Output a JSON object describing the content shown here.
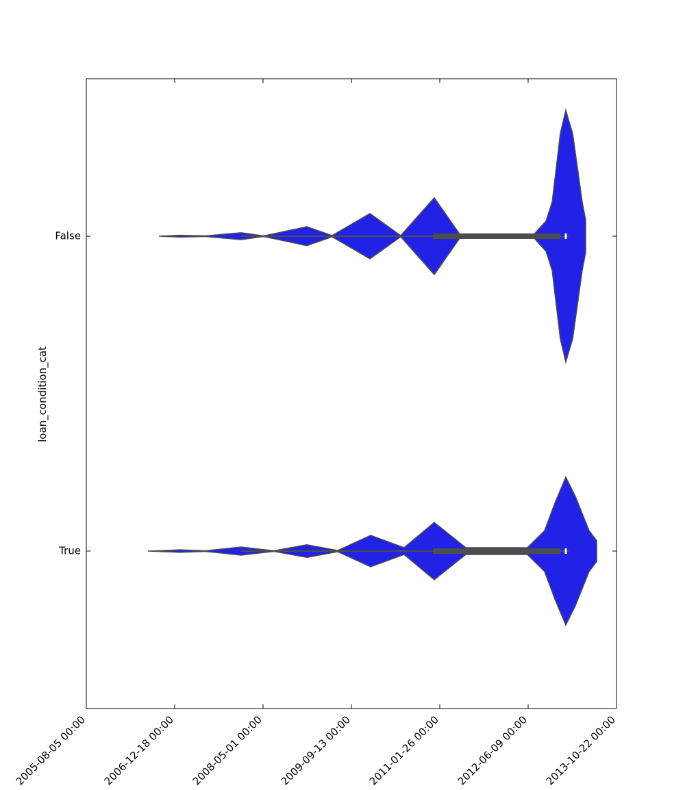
{
  "chart_data": {
    "type": "violin",
    "ylabel": "loan_condition_cat",
    "categories": [
      "False",
      "True"
    ],
    "color": "#2222e6",
    "line_color": "#4d4d4d",
    "xlim": [
      "2005-08-05",
      "2013-10-22"
    ],
    "xticks": [
      {
        "value": "2005-08-05",
        "label": "2005-08-05 00:00"
      },
      {
        "value": "2006-12-18",
        "label": "2006-12-18 00:00"
      },
      {
        "value": "2008-05-01",
        "label": "2008-05-01 00:00"
      },
      {
        "value": "2009-09-13",
        "label": "2009-09-13 00:00"
      },
      {
        "value": "2011-01-26",
        "label": "2011-01-26 00:00"
      },
      {
        "value": "2012-06-09",
        "label": "2012-06-09 00:00"
      },
      {
        "value": "2013-10-22",
        "label": "2013-10-22 00:00"
      }
    ],
    "violins": [
      {
        "x": [
          "2006-09-20",
          "2007-01-14",
          "2007-06-10",
          "2007-12-29",
          "2008-05-05",
          "2009-01-04",
          "2009-05-27",
          "2009-12-27",
          "2010-06-19",
          "2010-12-26",
          "2011-05-22",
          "2012-07-14",
          "2012-09-18",
          "2012-10-23",
          "2012-12-08",
          "2013-01-08",
          "2013-02-16",
          "2013-04-11",
          "2013-05-01"
        ],
        "width": [
          0,
          0.003,
          0.001,
          0.011,
          0.001,
          0.03,
          0.002,
          0.072,
          0.002,
          0.122,
          0.004,
          0.007,
          0.048,
          0.109,
          0.326,
          0.4,
          0.326,
          0.109,
          0.05
        ],
        "whisker": [
          "2007-12-29",
          "2013-01-24"
        ],
        "quartiles": [
          "2010-12-18",
          "2013-01-08",
          "2012-12-08"
        ]
      },
      {
        "x": [
          "2006-07-20",
          "2007-01-14",
          "2007-06-10",
          "2007-12-29",
          "2008-07-02",
          "2009-01-04",
          "2009-06-28",
          "2009-12-31",
          "2010-07-08",
          "2010-12-26",
          "2011-06-22",
          "2012-06-05",
          "2012-09-10",
          "2012-11-07",
          "2013-01-08",
          "2013-03-03",
          "2013-05-20",
          "2013-07-02"
        ],
        "width": [
          0,
          0.004,
          0.001,
          0.013,
          0.001,
          0.02,
          0.002,
          0.05,
          0.011,
          0.091,
          0.011,
          0.011,
          0.065,
          0.152,
          0.235,
          0.174,
          0.065,
          0.033
        ],
        "whisker": [
          "2007-12-29",
          "2013-01-24"
        ],
        "quartiles": [
          "2010-12-18",
          "2013-01-08",
          "2012-12-08"
        ]
      }
    ]
  }
}
